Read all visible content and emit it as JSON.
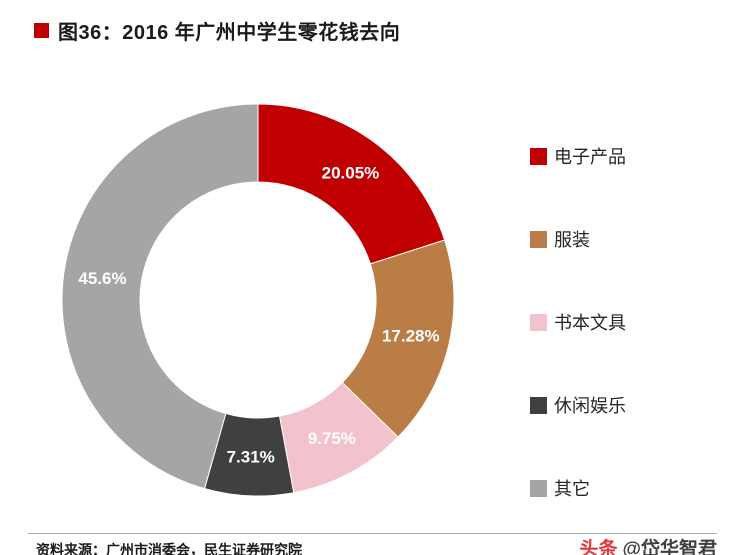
{
  "title": {
    "text": "图36：2016 年广州中学生零花钱去向",
    "bullet_color": "#C00000"
  },
  "chart_data": {
    "type": "pie",
    "subtype": "donut",
    "title": "2016 年广州中学生零花钱去向",
    "categories": [
      "电子产品",
      "服装",
      "书本文具",
      "休闲娱乐",
      "其它"
    ],
    "values": [
      20.05,
      17.28,
      9.75,
      7.31,
      45.6
    ],
    "labels": [
      "20.05%",
      "17.28%",
      "9.75%",
      "7.31%",
      "45.6%"
    ],
    "colors": [
      "#C00000",
      "#BA7D45",
      "#F2C3CD",
      "#404040",
      "#A5A5A5"
    ],
    "start_angle_deg": 0,
    "direction": "clockwise",
    "inner_radius_ratio": 0.6,
    "label_color": "#FFFFFF",
    "legend_position": "right",
    "grid": false
  },
  "footer": {
    "source": "资料来源：广州市消委会，民生证券研究院",
    "watermark_brand": "头条",
    "watermark_handle": "@岱华智君"
  }
}
